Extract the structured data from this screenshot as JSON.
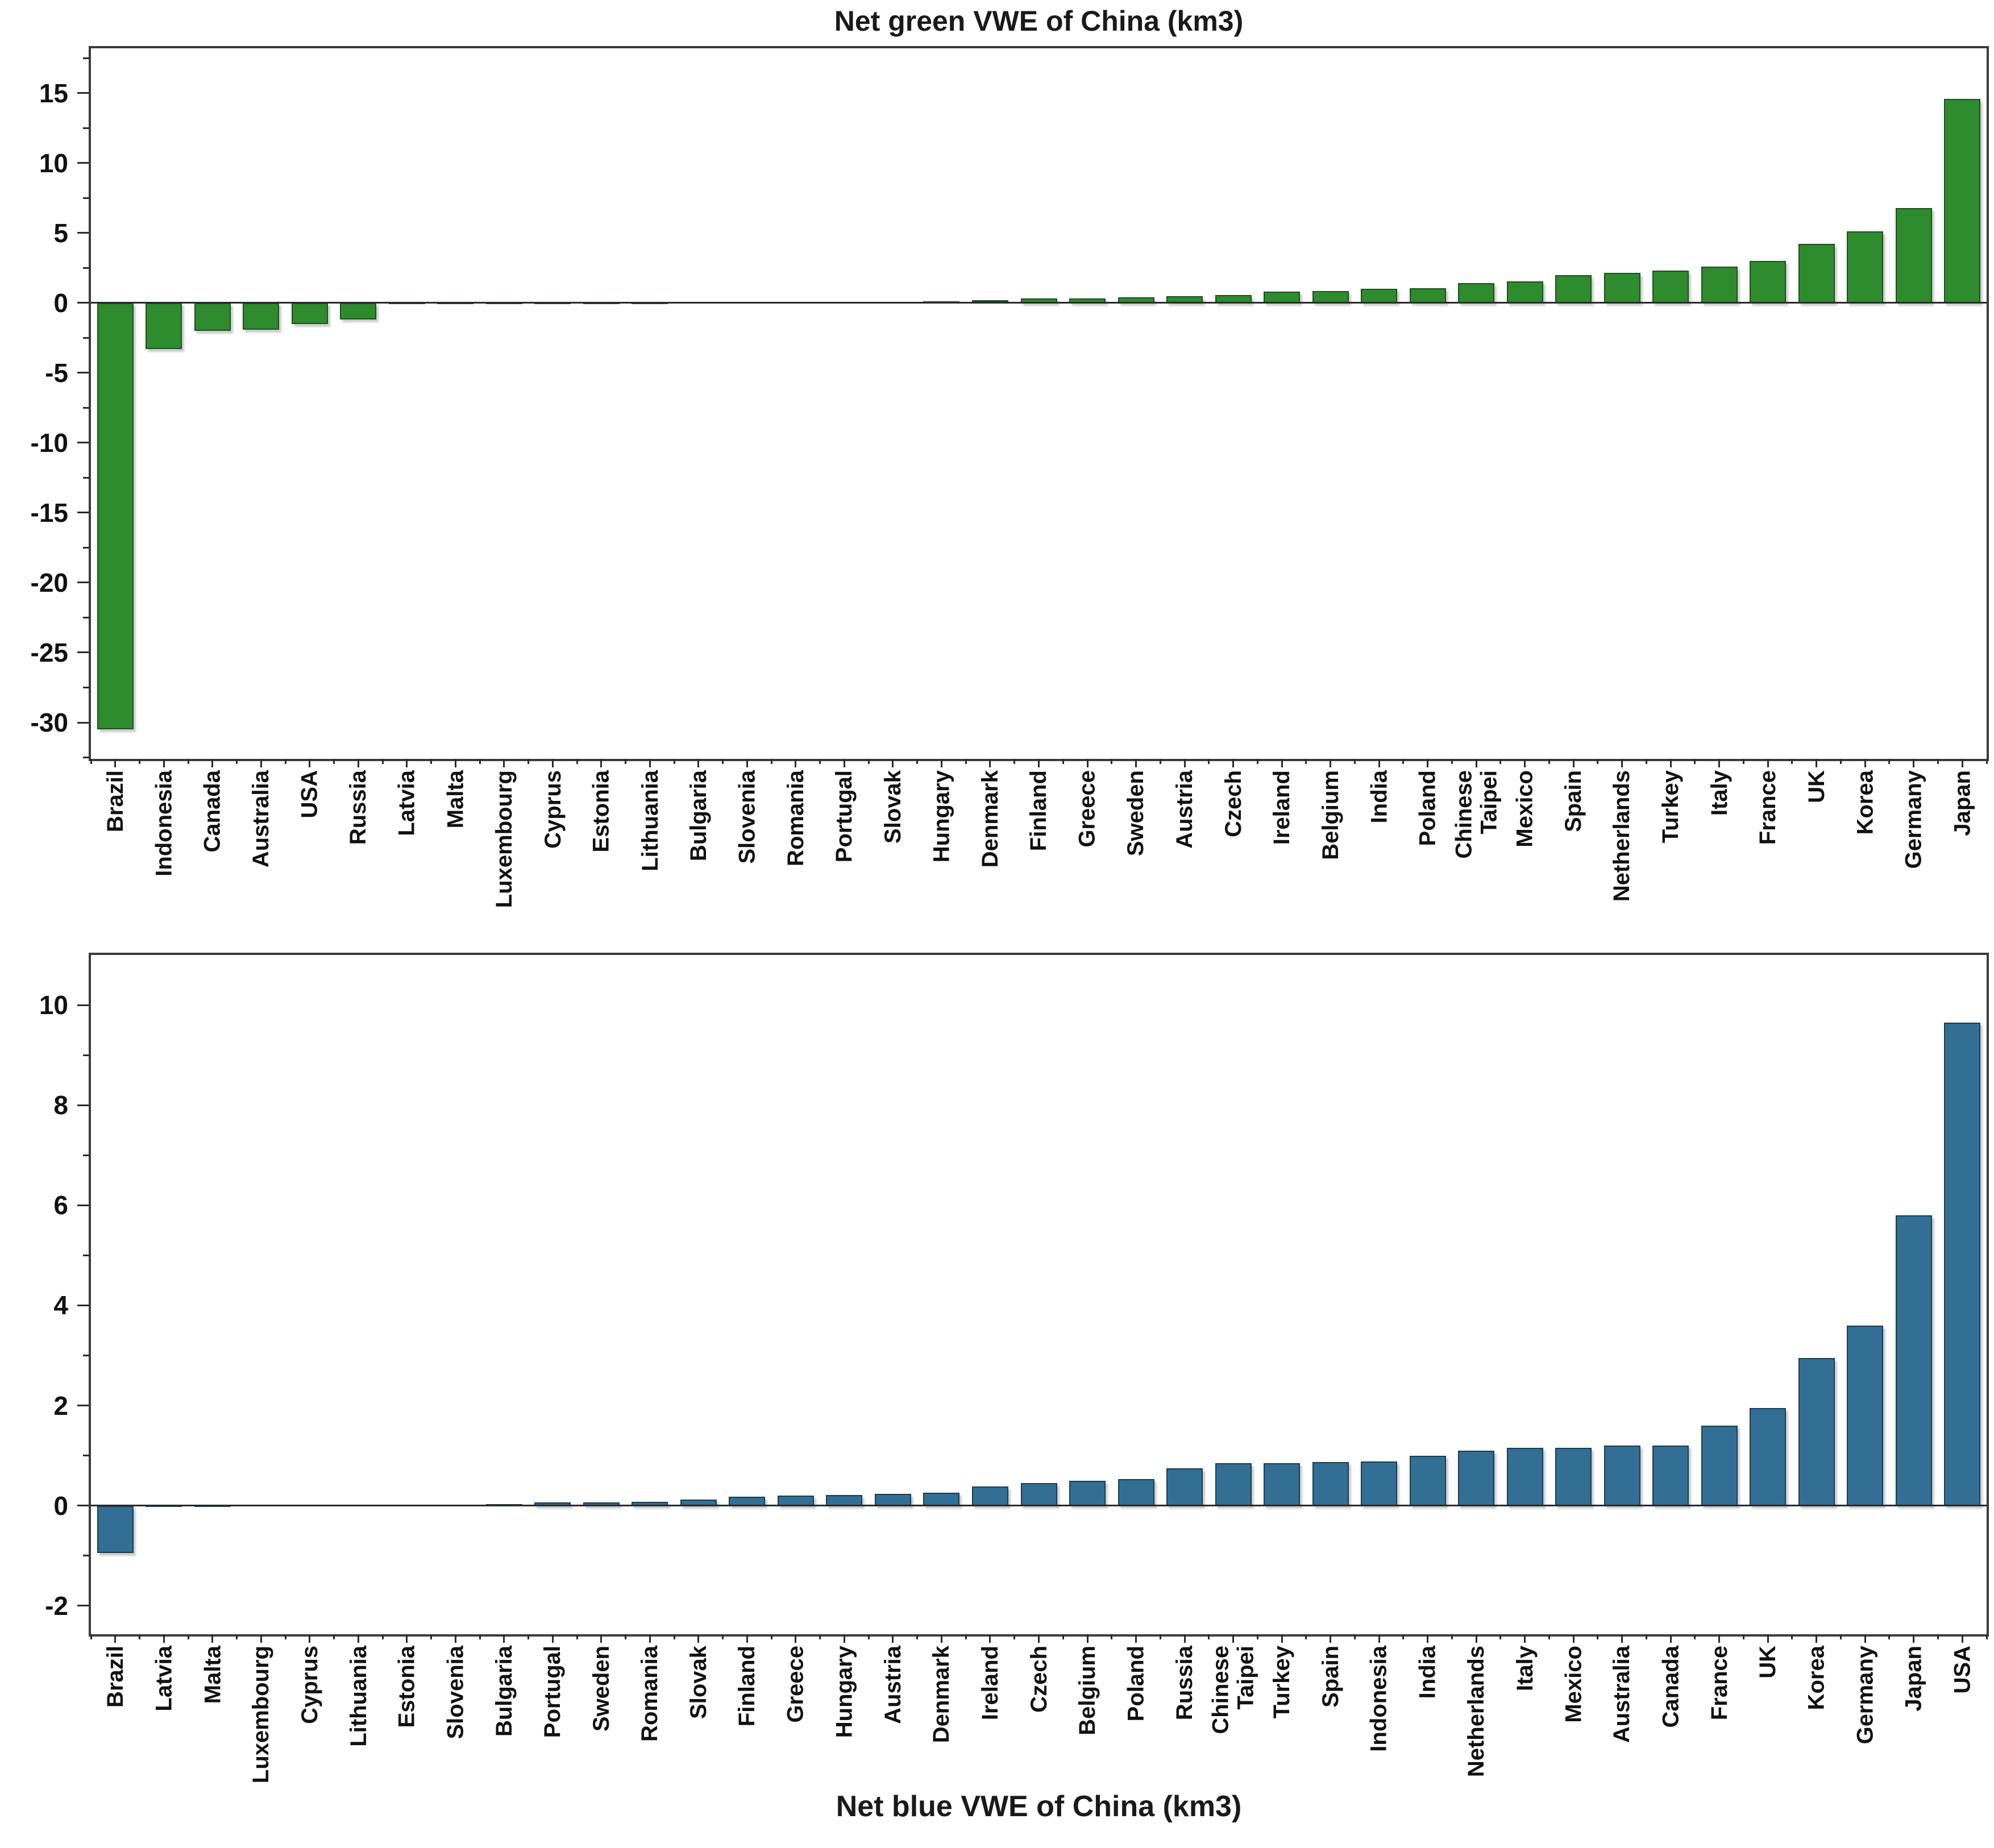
{
  "page": {
    "background": "#ffffff"
  },
  "chart_data": [
    {
      "type": "bar",
      "title": "Net green VWE of China (km3)",
      "title_position": "top",
      "bar_color": "#2e8b2e",
      "bar_edge_color": "#1b511b",
      "axis_color": "#3b3b3b",
      "grid": false,
      "legend": null,
      "ylim": [
        -32.6,
        18.2
      ],
      "yticks": [
        15,
        10,
        5,
        0,
        -5,
        -10,
        -15,
        -20,
        -25,
        -30
      ],
      "minor_tick_step": 2.5,
      "categories": [
        "Brazil",
        "Indonesia",
        "Canada",
        "Australia",
        "USA",
        "Russia",
        "Latvia",
        "Malta",
        "Luxembourg",
        "Cyprus",
        "Estonia",
        "Lithuania",
        "Bulgaria",
        "Slovenia",
        "Romania",
        "Portugal",
        "Slovak",
        "Hungary",
        "Denmark",
        "Finland",
        "Greece",
        "Sweden",
        "Austria",
        "Czech",
        "Ireland",
        "Belgium",
        "India",
        "Poland",
        "Chinese Taipei",
        "Mexico",
        "Spain",
        "Netherlands",
        "Turkey",
        "Italy",
        "France",
        "UK",
        "Korea",
        "Germany",
        "Japan"
      ],
      "values": [
        -30.5,
        -3.3,
        -2.0,
        -1.9,
        -1.5,
        -1.2,
        -0.07,
        -0.05,
        -0.03,
        -0.02,
        -0.02,
        -0.01,
        0.02,
        0.03,
        0.04,
        0.05,
        0.07,
        0.13,
        0.2,
        0.3,
        0.33,
        0.38,
        0.5,
        0.57,
        0.8,
        0.85,
        1.0,
        1.05,
        1.4,
        1.55,
        2.0,
        2.15,
        2.3,
        2.6,
        3.0,
        4.2,
        5.1,
        6.8,
        14.6
      ]
    },
    {
      "type": "bar",
      "title": "Net blue VWE of China (km3)",
      "title_position": "bottom",
      "bar_color": "#336f94",
      "bar_edge_color": "#173c55",
      "axis_color": "#3b3b3b",
      "grid": false,
      "legend": null,
      "ylim": [
        -2.57,
        11
      ],
      "yticks": [
        10,
        8,
        6,
        4,
        2,
        0,
        -2
      ],
      "minor_tick_step": 1,
      "categories": [
        "Brazil",
        "Latvia",
        "Malta",
        "Luxembourg",
        "Cyprus",
        "Lithuania",
        "Estonia",
        "Slovenia",
        "Bulgaria",
        "Portugal",
        "Sweden",
        "Romania",
        "Slovak",
        "Finland",
        "Greece",
        "Hungary",
        "Austria",
        "Denmark",
        "Ireland",
        "Czech",
        "Belgium",
        "Poland",
        "Russia",
        "Chinese Taipei",
        "Turkey",
        "Spain",
        "Indonesia",
        "India",
        "Netherlands",
        "Italy",
        "Mexico",
        "Australia",
        "Canada",
        "France",
        "UK",
        "Korea",
        "Germany",
        "Japan",
        "USA"
      ],
      "values": [
        -0.95,
        0.0,
        0.0,
        0.01,
        0.01,
        0.01,
        0.02,
        0.02,
        0.03,
        0.07,
        0.07,
        0.08,
        0.12,
        0.18,
        0.2,
        0.21,
        0.23,
        0.26,
        0.38,
        0.45,
        0.5,
        0.53,
        0.75,
        0.85,
        0.85,
        0.87,
        0.88,
        1.0,
        1.1,
        1.15,
        1.15,
        1.2,
        1.2,
        1.6,
        1.95,
        2.95,
        3.6,
        5.8,
        9.65
      ]
    }
  ]
}
